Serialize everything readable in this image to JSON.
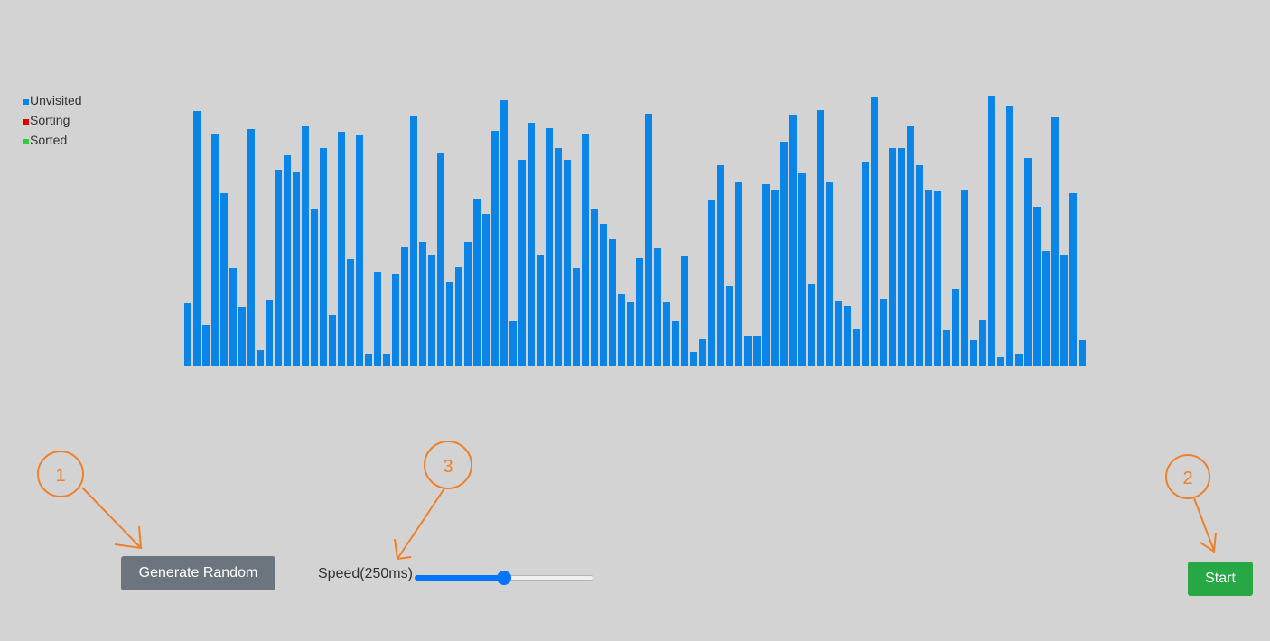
{
  "legend": {
    "items": [
      {
        "label": "Unvisited",
        "color": "#0a84e6"
      },
      {
        "label": "Sorting",
        "color": "#e00000"
      },
      {
        "label": "Sorted",
        "color": "#2ecc40"
      }
    ]
  },
  "chart_data": {
    "type": "bar",
    "color": "#0a84e6",
    "ylim": [
      0,
      300
    ],
    "values": [
      69,
      282,
      45,
      257,
      191,
      108,
      65,
      262,
      17,
      73,
      217,
      233,
      215,
      265,
      173,
      241,
      56,
      259,
      118,
      255,
      13,
      104,
      13,
      101,
      131,
      277,
      137,
      122,
      235,
      93,
      109,
      137,
      185,
      168,
      260,
      294,
      50,
      228,
      269,
      123,
      263,
      241,
      228,
      108,
      257,
      173,
      157,
      140,
      79,
      71,
      119,
      279,
      130,
      70,
      50,
      121,
      15,
      29,
      184,
      222,
      88,
      203,
      33,
      33,
      201,
      195,
      248,
      278,
      213,
      90,
      283,
      203,
      72,
      66,
      41,
      226,
      298,
      74,
      241,
      241,
      265,
      222,
      194,
      193,
      39,
      85,
      194,
      28,
      51,
      299,
      10,
      288,
      13,
      230,
      176,
      127,
      275,
      123,
      191,
      28
    ]
  },
  "controls": {
    "generate_label": "Generate Random",
    "start_label": "Start",
    "speed_label": "Speed(250ms)",
    "speed_fraction": 0.5
  },
  "annotations": {
    "color": "#f07f2a",
    "labels": [
      "1",
      "3",
      "2"
    ]
  }
}
